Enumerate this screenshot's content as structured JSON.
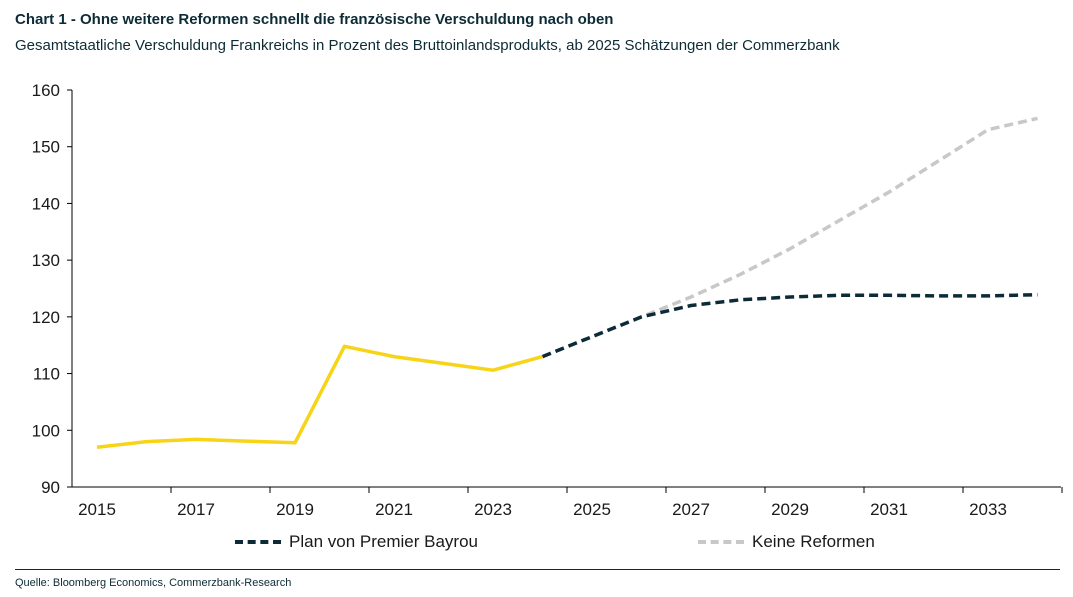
{
  "header": {
    "title": "Chart 1 - Ohne weitere Reformen schnellt die französische Verschuldung nach oben",
    "subtitle": "Gesamtstaatliche Verschuldung Frankreichs in Prozent des Bruttoinlandsprodukts, ab 2025 Schätzungen der Commerzbank"
  },
  "legend": {
    "plan_label": "Plan von Premier Bayrou",
    "keine_label": "Keine Reformen"
  },
  "footer": {
    "source": "Quelle: Bloomberg Economics, Commerzbank-Research"
  },
  "colors": {
    "historical": "#f7d417",
    "plan": "#0d2b36",
    "keine": "#c8c8c8",
    "axis": "#000000"
  },
  "chart_data": {
    "type": "line",
    "title": "Chart 1 - Ohne weitere Reformen schnellt die französische Verschuldung nach oben",
    "subtitle": "Gesamtstaatliche Verschuldung Frankreichs in Prozent des Bruttoinlandsprodukts, ab 2025 Schätzungen der Commerzbank",
    "xlabel": "",
    "ylabel": "",
    "xlim": [
      2015,
      2034.5
    ],
    "ylim": [
      90,
      160
    ],
    "x_ticks": [
      2015,
      2017,
      2019,
      2021,
      2023,
      2025,
      2027,
      2029,
      2031,
      2033
    ],
    "y_ticks": [
      90,
      100,
      110,
      120,
      130,
      140,
      150,
      160
    ],
    "grid": false,
    "legend_position": "bottom",
    "series": [
      {
        "key": "historical",
        "style": "solid",
        "x": [
          2015,
          2016,
          2017,
          2018,
          2019,
          2020,
          2021,
          2022,
          2023,
          2024
        ],
        "y": [
          97.0,
          98.0,
          98.4,
          98.1,
          97.8,
          114.8,
          113.0,
          111.8,
          110.6,
          113.0
        ]
      },
      {
        "key": "keine",
        "name": "Keine Reformen",
        "style": "dashed",
        "x": [
          2024,
          2025,
          2026,
          2027,
          2028,
          2029,
          2030,
          2031,
          2032,
          2033,
          2034
        ],
        "y": [
          113.0,
          116.5,
          120.0,
          123.5,
          127.5,
          132.0,
          137.0,
          142.0,
          147.5,
          153.0,
          155.0
        ]
      },
      {
        "key": "plan",
        "name": "Plan von Premier Bayrou",
        "style": "dashed",
        "x": [
          2024,
          2025,
          2026,
          2027,
          2028,
          2029,
          2030,
          2031,
          2032,
          2033,
          2034
        ],
        "y": [
          113.0,
          116.5,
          120.0,
          122.0,
          123.0,
          123.5,
          123.8,
          123.8,
          123.7,
          123.7,
          123.9
        ]
      }
    ]
  }
}
